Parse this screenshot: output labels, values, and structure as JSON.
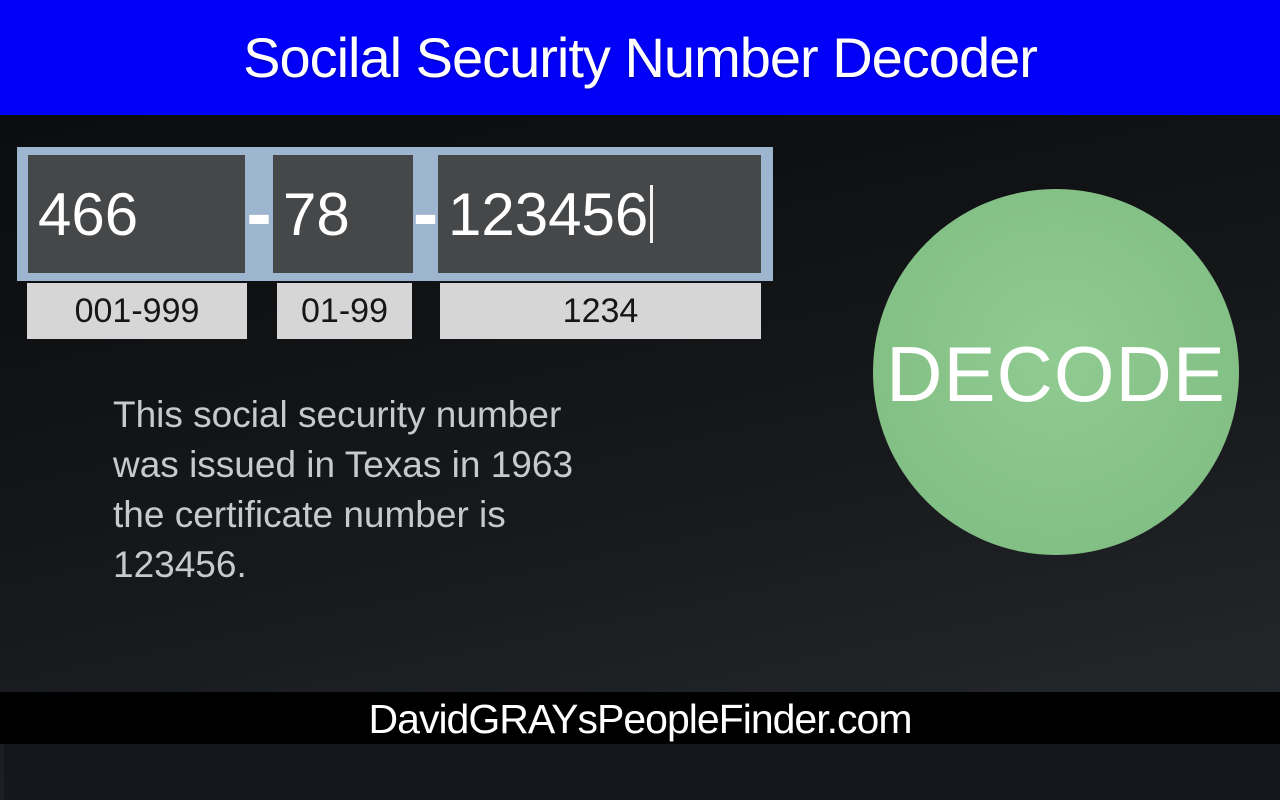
{
  "header": {
    "title": "Socilal Security Number Decoder",
    "bg_color": "#0101f8",
    "text_color": "#ffffff"
  },
  "ssn_input": {
    "separator": "-",
    "frame_color": "#9eb5cf",
    "field_bg_color": "#454748",
    "hint_bg_color": "#d6d6d6",
    "area": {
      "value": "466",
      "hint": "001-999"
    },
    "group": {
      "value": "78",
      "hint": "01-99"
    },
    "serial": {
      "value": "123456",
      "hint": "1234"
    }
  },
  "result": {
    "lines": [
      "This social security number",
      "was issued in Texas in 1963",
      "the certificate number is",
      "123456."
    ]
  },
  "decode_button": {
    "label": "DECODE",
    "color": "#85c287"
  },
  "footer": {
    "site": "DavidGRAYsPeopleFinder.com"
  }
}
